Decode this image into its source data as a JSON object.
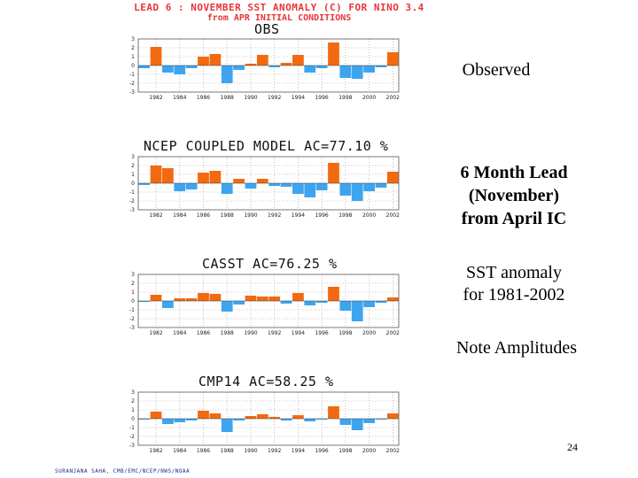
{
  "header": {
    "line1": "LEAD 6 : NOVEMBER SST ANOMALY (C) FOR NINO 3.4",
    "line2": "from APR INITIAL CONDITIONS"
  },
  "annotations": {
    "observed": "Observed",
    "lead_line1": "6 Month Lead",
    "lead_line2": "(November)",
    "lead_line3": "from April IC",
    "sst_line1": "SST anomaly",
    "sst_line2": "for 1981-2002",
    "note": "Note Amplitudes"
  },
  "footer": "SURANJANA SAHA, CMB/EMC/NCEP/NWS/NOAA",
  "page_number": "24",
  "colors": {
    "positive": "#f26a10",
    "negative": "#3da5f0",
    "header": "#e8343a"
  },
  "chart_data": [
    {
      "type": "bar",
      "title": "OBS",
      "x": [
        1981,
        1982,
        1983,
        1984,
        1985,
        1986,
        1987,
        1988,
        1989,
        1990,
        1991,
        1992,
        1993,
        1994,
        1995,
        1996,
        1997,
        1998,
        1999,
        2000,
        2001,
        2002
      ],
      "values": [
        -0.3,
        2.1,
        -0.8,
        -1.0,
        -0.3,
        1.0,
        1.3,
        -2.0,
        -0.5,
        0.2,
        1.2,
        -0.2,
        0.3,
        1.2,
        -0.8,
        -0.3,
        2.6,
        -1.4,
        -1.5,
        -0.8,
        -0.2,
        1.5
      ],
      "ylim": [
        -3,
        3
      ],
      "yticks": [
        "3",
        "2",
        "1",
        "0",
        "-1",
        "-2",
        "-3"
      ],
      "xticks": [
        "1982",
        "1984",
        "1986",
        "1988",
        "1990",
        "1992",
        "1994",
        "1996",
        "1998",
        "2000",
        "2002"
      ]
    },
    {
      "type": "bar",
      "title": "NCEP COUPLED MODEL AC=77.10 %",
      "x": [
        1981,
        1982,
        1983,
        1984,
        1985,
        1986,
        1987,
        1988,
        1989,
        1990,
        1991,
        1992,
        1993,
        1994,
        1995,
        1996,
        1997,
        1998,
        1999,
        2000,
        2001,
        2002
      ],
      "values": [
        -0.2,
        2.0,
        1.7,
        -0.9,
        -0.7,
        1.2,
        1.4,
        -1.2,
        0.5,
        -0.6,
        0.5,
        -0.3,
        -0.4,
        -1.2,
        -1.6,
        -0.8,
        2.3,
        -1.4,
        -2.0,
        -0.9,
        -0.5,
        1.3
      ],
      "ylim": [
        -3,
        3
      ],
      "yticks": [
        "3",
        "2",
        "1",
        "0",
        "-1",
        "-2",
        "-3"
      ],
      "xticks": [
        "1982",
        "1984",
        "1986",
        "1988",
        "1990",
        "1992",
        "1994",
        "1996",
        "1998",
        "2000",
        "2002"
      ]
    },
    {
      "type": "bar",
      "title": "CASST AC=76.25 %",
      "x": [
        1981,
        1982,
        1983,
        1984,
        1985,
        1986,
        1987,
        1988,
        1989,
        1990,
        1991,
        1992,
        1993,
        1994,
        1995,
        1996,
        1997,
        1998,
        1999,
        2000,
        2001,
        2002
      ],
      "values": [
        -0.1,
        0.7,
        -0.8,
        0.3,
        0.3,
        0.9,
        0.8,
        -1.2,
        -0.4,
        0.6,
        0.5,
        0.5,
        -0.3,
        0.9,
        -0.5,
        -0.2,
        1.6,
        -1.1,
        -2.3,
        -0.7,
        -0.2,
        0.4
      ],
      "ylim": [
        -3,
        3
      ],
      "yticks": [
        "3",
        "2",
        "1",
        "0",
        "-1",
        "-2",
        "-3"
      ],
      "xticks": [
        "1982",
        "1984",
        "1986",
        "1988",
        "1990",
        "1992",
        "1994",
        "1996",
        "1998",
        "2000",
        "2002"
      ]
    },
    {
      "type": "bar",
      "title": "CMP14 AC=58.25 %",
      "x": [
        1981,
        1982,
        1983,
        1984,
        1985,
        1986,
        1987,
        1988,
        1989,
        1990,
        1991,
        1992,
        1993,
        1994,
        1995,
        1996,
        1997,
        1998,
        1999,
        2000,
        2001,
        2002
      ],
      "values": [
        -0.1,
        0.8,
        -0.6,
        -0.4,
        -0.2,
        0.9,
        0.6,
        -1.5,
        -0.2,
        0.3,
        0.5,
        0.2,
        -0.2,
        0.4,
        -0.3,
        -0.1,
        1.4,
        -0.7,
        -1.3,
        -0.5,
        -0.1,
        0.6
      ],
      "ylim": [
        -3,
        3
      ],
      "yticks": [
        "3",
        "2",
        "1",
        "0",
        "-1",
        "-2",
        "-3"
      ],
      "xticks": [
        "1982",
        "1984",
        "1986",
        "1988",
        "1990",
        "1992",
        "1994",
        "1996",
        "1998",
        "2000",
        "2002"
      ]
    }
  ]
}
